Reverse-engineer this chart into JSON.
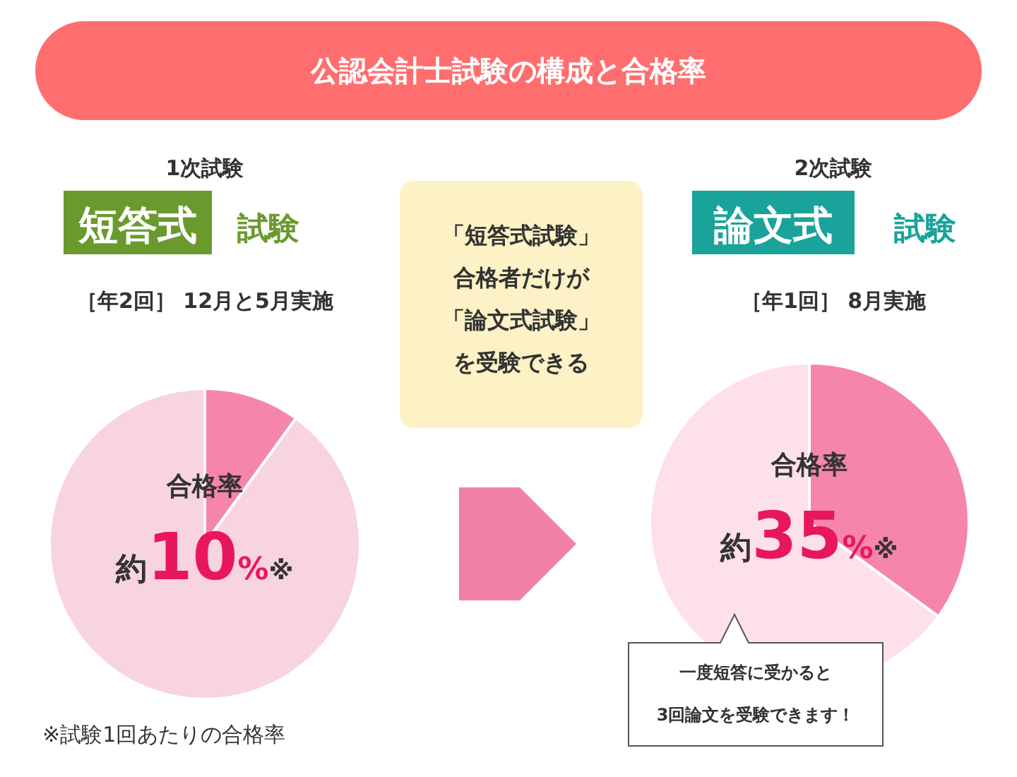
{
  "chart_data": [
    {
      "type": "other",
      "title": "公認会計士試験の構成と合格率"
    },
    {
      "type": "pie",
      "categories": [
        null,
        null
      ],
      "values": [
        10,
        90
      ],
      "colors": [
        "#f585ad",
        "#f8d3e0"
      ],
      "annotations": [
        "1次試験",
        "短答式",
        "試験",
        "［年2回］ 12月と5月実施",
        "合格率",
        "約10%※",
        "※試験1回あたりの合格率"
      ]
    },
    {
      "type": "other",
      "annotations": [
        "「短答式試験」",
        "合格者だけが",
        "「論文式試験」",
        "を受験できる"
      ]
    },
    {
      "type": "pie",
      "categories": [
        null,
        null
      ],
      "values": [
        35,
        65
      ],
      "colors": [
        "#f585ad",
        "#fde0ea"
      ],
      "annotations": [
        "2次試験",
        "論文式",
        "試験",
        "［年1回］ 8月実施",
        "合格率",
        "約35%※",
        "一度短答に受かると\n3回論文を受験できます！"
      ]
    }
  ]
}
